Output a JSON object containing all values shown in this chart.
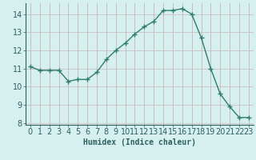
{
  "x": [
    0,
    1,
    2,
    3,
    4,
    5,
    6,
    7,
    8,
    9,
    10,
    11,
    12,
    13,
    14,
    15,
    16,
    17,
    18,
    19,
    20,
    21,
    22,
    23
  ],
  "y": [
    11.1,
    10.9,
    10.9,
    10.9,
    10.3,
    10.4,
    10.4,
    10.8,
    11.5,
    12.0,
    12.4,
    12.9,
    13.3,
    13.6,
    14.2,
    14.2,
    14.3,
    14.0,
    12.7,
    11.0,
    9.6,
    8.9,
    8.3,
    8.3
  ],
  "xlabel": "Humidex (Indice chaleur)",
  "xlim": [
    -0.5,
    23.5
  ],
  "ylim": [
    7.9,
    14.6
  ],
  "yticks": [
    8,
    9,
    10,
    11,
    12,
    13,
    14
  ],
  "xticks": [
    0,
    1,
    2,
    3,
    4,
    5,
    6,
    7,
    8,
    9,
    10,
    11,
    12,
    13,
    14,
    15,
    16,
    17,
    18,
    19,
    20,
    21,
    22,
    23
  ],
  "line_color": "#2e7d6e",
  "marker": "+",
  "marker_size": 4,
  "marker_lw": 1.0,
  "bg_color": "#d6efef",
  "grid_color_v": "#c8a8a8",
  "grid_color_h": "#c8b8b8",
  "xlabel_fontsize": 7,
  "tick_fontsize": 7,
  "linewidth": 1.0
}
